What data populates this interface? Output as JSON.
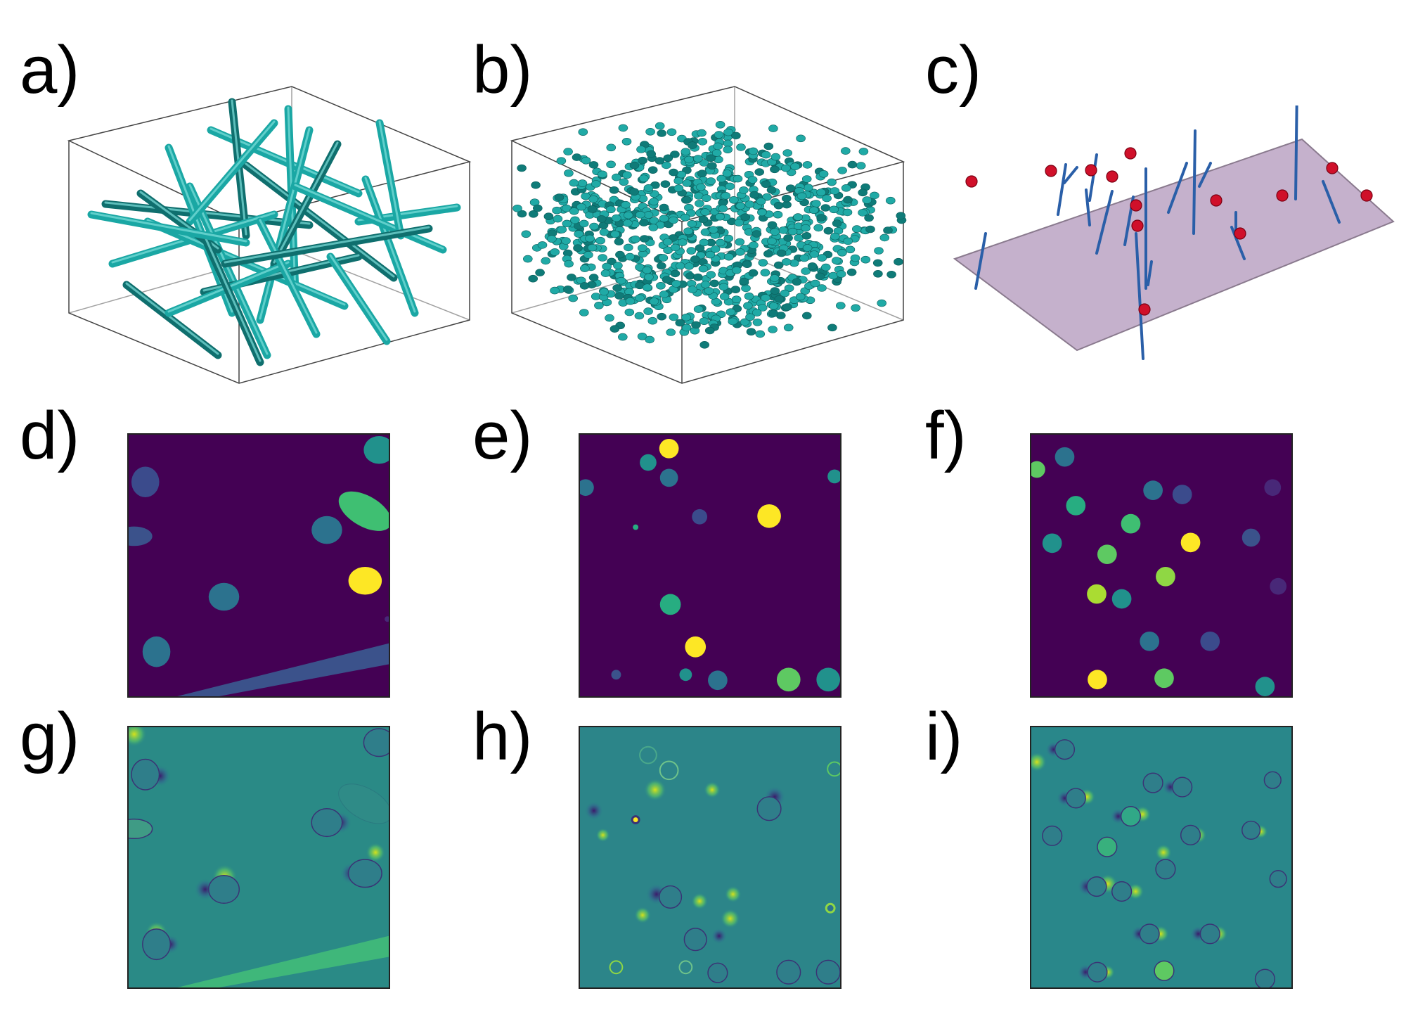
{
  "panels": [
    {
      "id": "a",
      "label": "a)",
      "kind": "fiber-volume"
    },
    {
      "id": "b",
      "label": "b)",
      "kind": "particle-volume"
    },
    {
      "id": "c",
      "label": "c)",
      "kind": "slice-plane"
    },
    {
      "id": "d",
      "label": "d)",
      "kind": "cross-section"
    },
    {
      "id": "e",
      "label": "e)",
      "kind": "cross-section"
    },
    {
      "id": "f",
      "label": "f)",
      "kind": "cross-section"
    },
    {
      "id": "g",
      "label": "g)",
      "kind": "field-map"
    },
    {
      "id": "h",
      "label": "h)",
      "kind": "field-map"
    },
    {
      "id": "i",
      "label": "i)",
      "kind": "field-map"
    }
  ],
  "colors": {
    "fiber": "#1aa7a4",
    "particle": "#1aa7a4",
    "plane_fill": "#c5b1cc",
    "plane_edge": "#8a7a8e",
    "rod": "#2a5fa8",
    "marker": "#d0102a",
    "background_section": "#440154",
    "field_base": "#2a8a86"
  }
}
